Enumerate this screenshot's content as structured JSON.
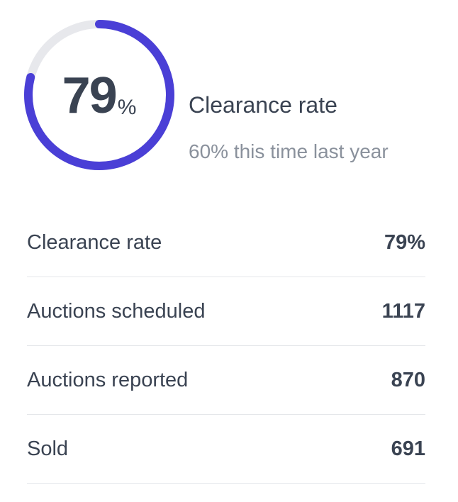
{
  "summary": {
    "percent_value": "79",
    "percent_unit": "%",
    "progress_fraction": 0.79,
    "title": "Clearance rate",
    "comparison": "60% this time last year"
  },
  "colors": {
    "progress": "#4a3fd6",
    "track": "#e7e8ec",
    "text": "#3a4352",
    "muted": "#8a919c",
    "divider": "#e4e6ea"
  },
  "stats": [
    {
      "label": "Clearance rate",
      "value": "79%"
    },
    {
      "label": "Auctions scheduled",
      "value": "1117"
    },
    {
      "label": "Auctions reported",
      "value": "870"
    },
    {
      "label": "Sold",
      "value": "691"
    }
  ]
}
